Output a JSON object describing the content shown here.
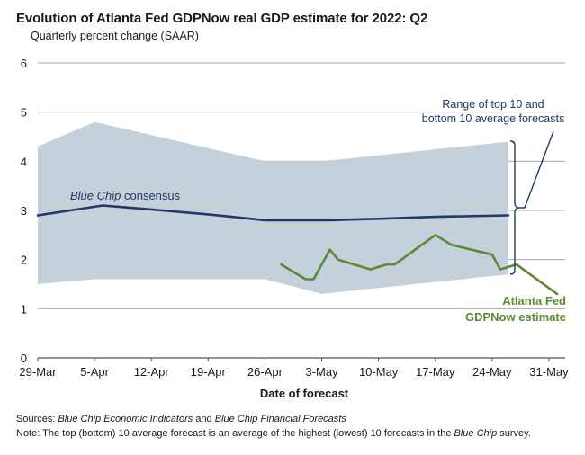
{
  "chart_data": {
    "type": "line",
    "title": "Evolution of Atlanta Fed GDPNow real GDP estimate for 2022: Q2",
    "subtitle": "Quarterly percent change (SAAR)",
    "xlabel": "Date of forecast",
    "ylabel": "",
    "ylim": [
      0,
      6
    ],
    "xlim": [
      "2022-03-29",
      "2022-06-02"
    ],
    "yticks": [
      0,
      1,
      2,
      3,
      4,
      5,
      6
    ],
    "xticks": [
      {
        "date": "2022-03-29",
        "label": "29-Mar"
      },
      {
        "date": "2022-04-05",
        "label": "5-Apr"
      },
      {
        "date": "2022-04-12",
        "label": "12-Apr"
      },
      {
        "date": "2022-04-19",
        "label": "19-Apr"
      },
      {
        "date": "2022-04-26",
        "label": "26-Apr"
      },
      {
        "date": "2022-05-03",
        "label": "3-May"
      },
      {
        "date": "2022-05-10",
        "label": "10-May"
      },
      {
        "date": "2022-05-17",
        "label": "17-May"
      },
      {
        "date": "2022-05-24",
        "label": "24-May"
      },
      {
        "date": "2022-05-31",
        "label": "31-May"
      }
    ],
    "grid": true,
    "series": [
      {
        "name": "Blue Chip consensus",
        "color": "#1f3a68",
        "points": [
          {
            "x": "2022-03-29",
            "y": 2.9
          },
          {
            "x": "2022-04-06",
            "y": 3.1
          },
          {
            "x": "2022-04-12",
            "y": 3.02
          },
          {
            "x": "2022-04-19",
            "y": 2.92
          },
          {
            "x": "2022-04-26",
            "y": 2.8
          },
          {
            "x": "2022-05-04",
            "y": 2.8
          },
          {
            "x": "2022-05-10",
            "y": 2.83
          },
          {
            "x": "2022-05-17",
            "y": 2.87
          },
          {
            "x": "2022-05-26",
            "y": 2.9
          }
        ]
      },
      {
        "name": "Atlanta Fed GDPNow estimate",
        "color": "#5b8a36",
        "points": [
          {
            "x": "2022-04-28",
            "y": 1.9
          },
          {
            "x": "2022-05-01",
            "y": 1.6
          },
          {
            "x": "2022-05-02",
            "y": 1.6
          },
          {
            "x": "2022-05-04",
            "y": 2.2
          },
          {
            "x": "2022-05-05",
            "y": 2.0
          },
          {
            "x": "2022-05-09",
            "y": 1.8
          },
          {
            "x": "2022-05-11",
            "y": 1.9
          },
          {
            "x": "2022-05-12",
            "y": 1.9
          },
          {
            "x": "2022-05-17",
            "y": 2.5
          },
          {
            "x": "2022-05-19",
            "y": 2.3
          },
          {
            "x": "2022-05-24",
            "y": 2.1
          },
          {
            "x": "2022-05-25",
            "y": 1.8
          },
          {
            "x": "2022-05-27",
            "y": 1.9
          },
          {
            "x": "2022-06-01",
            "y": 1.3
          }
        ]
      }
    ],
    "band": {
      "name": "Range of top 10 and bottom 10 average forecasts",
      "color": "#c2cfd8",
      "upper": [
        {
          "x": "2022-03-29",
          "y": 4.3
        },
        {
          "x": "2022-04-05",
          "y": 4.8
        },
        {
          "x": "2022-04-26",
          "y": 4.0
        },
        {
          "x": "2022-05-03",
          "y": 4.0
        },
        {
          "x": "2022-05-26",
          "y": 4.4
        }
      ],
      "lower": [
        {
          "x": "2022-03-29",
          "y": 1.5
        },
        {
          "x": "2022-04-05",
          "y": 1.6
        },
        {
          "x": "2022-04-26",
          "y": 1.6
        },
        {
          "x": "2022-05-03",
          "y": 1.3
        },
        {
          "x": "2022-05-26",
          "y": 1.7
        }
      ]
    },
    "annotations": {
      "band_label_line1": "Range of top 10 and",
      "band_label_line2": "bottom 10 average forecasts",
      "bluechip_label_italic": "Blue Chip",
      "bluechip_label_rest": " consensus",
      "gdpnow_label_line1": "Atlanta Fed",
      "gdpnow_label_line2": "GDPNow estimate"
    }
  },
  "footer": {
    "sources_prefix": "Sources: ",
    "sources_italic_1": "Blue Chip Economic Indicators",
    "sources_mid": " and ",
    "sources_italic_2": "Blue Chip Financial Forecasts",
    "note_prefix": "Note: The top (bottom) 10 average forecast is an average of the highest (lowest) 10 forecasts in the ",
    "note_italic": "Blue Chip",
    "note_suffix": " survey."
  }
}
